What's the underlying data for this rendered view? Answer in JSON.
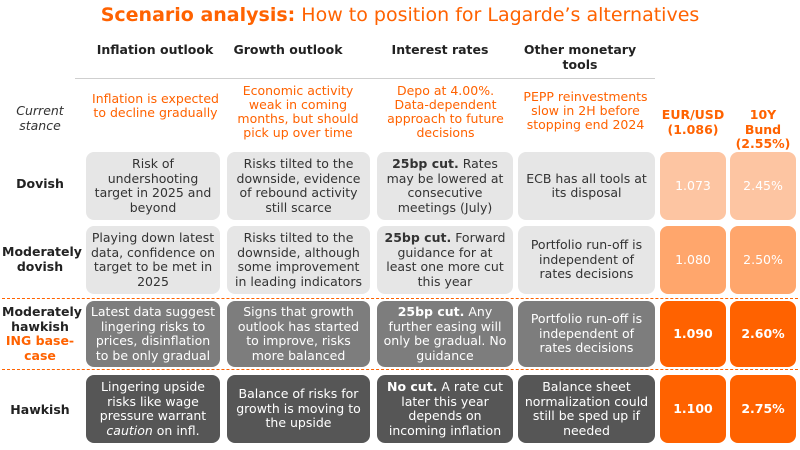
{
  "title": {
    "bold": "Scenario analysis:",
    "rest": " How to position for Lagarde’s alternatives"
  },
  "columns": [
    {
      "label": "Inflation outlook"
    },
    {
      "label": "Growth outlook"
    },
    {
      "label": "Interest rates"
    },
    {
      "label": "Other monetary tools"
    }
  ],
  "current_stance": {
    "label": "Current stance",
    "inflation": "Inflation is expected to decline gradually",
    "growth": "Economic activity weak in coming months, but should pick up over time",
    "rates": "Depo at 4.00%. Data-dependent approach to future decisions",
    "tools": "PEPP reinvestments slow in 2H before stopping end 2024",
    "market_heads": [
      "EUR/USD (1.086)",
      "10Y Bund (2.55%)"
    ]
  },
  "rows": [
    {
      "label": "Dovish",
      "inflation": "Risk of undershooting target in 2025 and beyond",
      "growth": "Risks tilted to the downside, evidence of rebound activity still scarce",
      "rates_bold": "25bp cut.",
      "rates_rest": " Rates may be lowered at consecutive meetings (July)",
      "tools": "ECB has all tools at its disposal",
      "eurusd": "1.073",
      "bund": "2.45%"
    },
    {
      "label": "Moderately dovish",
      "inflation": "Playing down latest data, confidence on target to be met in 2025",
      "growth": "Risks tilted to the downside, although some improvement in leading indicators",
      "rates_bold": "25bp cut.",
      "rates_rest": " Forward guidance for at least one more cut this year",
      "tools": "Portfolio run-off is independent of rates decisions",
      "eurusd": "1.080",
      "bund": "2.50%"
    },
    {
      "label": "Moderately hawkish",
      "label_extra": "ING base-case",
      "inflation": "Latest data suggest lingering risks to prices, disinflation to be only gradual",
      "growth": "Signs that growth outlook has started to improve, risks more balanced",
      "rates_bold": "25bp cut.",
      "rates_rest": " Any further easing will only be gradual. No guidance",
      "tools": "Portfolio run-off is independent of rates decisions",
      "eurusd": "1.090",
      "bund": "2.60%"
    },
    {
      "label": "Hawkish",
      "inflation_pre": "Lingering upside risks like wage pressure warrant ",
      "inflation_ital": "caution",
      "inflation_post": " on infl.",
      "growth": "Balance of risks for growth is moving to the upside",
      "rates_bold": "No cut.",
      "rates_rest": " A rate cut later this year depends on incoming inflation",
      "tools": "Balance sheet normalization could still be sped up if needed",
      "eurusd": "1.100",
      "bund": "2.75%"
    }
  ]
}
